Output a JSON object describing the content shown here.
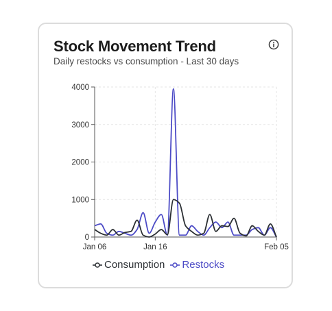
{
  "card": {
    "title": "Stock Movement Trend",
    "subtitle": "Daily restocks vs consumption - Last 30 days",
    "info_icon": "info-icon"
  },
  "chart_data": {
    "type": "line",
    "x": [
      "2024-01-06",
      "2024-01-07",
      "2024-01-08",
      "2024-01-09",
      "2024-01-10",
      "2024-01-11",
      "2024-01-12",
      "2024-01-13",
      "2024-01-14",
      "2024-01-15",
      "2024-01-16",
      "2024-01-17",
      "2024-01-18",
      "2024-01-19",
      "2024-01-20",
      "2024-01-21",
      "2024-01-22",
      "2024-01-23",
      "2024-01-24",
      "2024-01-25",
      "2024-01-26",
      "2024-01-27",
      "2024-01-28",
      "2024-01-29",
      "2024-01-30",
      "2024-01-31",
      "2024-02-01",
      "2024-02-02",
      "2024-02-03",
      "2024-02-04",
      "2024-02-05"
    ],
    "xticks": [
      {
        "label": "Jan 06",
        "index": 0
      },
      {
        "label": "Jan 16",
        "index": 10
      },
      {
        "label": "Feb 05",
        "index": 30
      }
    ],
    "series": [
      {
        "name": "Consumption",
        "color": "#2b2f33",
        "values": [
          200,
          100,
          50,
          200,
          50,
          120,
          150,
          450,
          50,
          0,
          80,
          200,
          60,
          1000,
          900,
          300,
          150,
          50,
          100,
          600,
          150,
          300,
          280,
          500,
          100,
          30,
          300,
          150,
          50,
          350,
          0
        ]
      },
      {
        "name": "Restocks",
        "color": "#4c4bc6",
        "values": [
          300,
          350,
          100,
          50,
          150,
          100,
          50,
          200,
          650,
          100,
          400,
          600,
          50,
          3950,
          50,
          50,
          300,
          150,
          50,
          250,
          400,
          250,
          400,
          50,
          50,
          50,
          200,
          250,
          50,
          250,
          0
        ]
      }
    ],
    "ylim": [
      0,
      4000
    ],
    "yticks": [
      0,
      1000,
      2000,
      3000,
      4000
    ],
    "grid": true,
    "legend_position": "bottom"
  }
}
